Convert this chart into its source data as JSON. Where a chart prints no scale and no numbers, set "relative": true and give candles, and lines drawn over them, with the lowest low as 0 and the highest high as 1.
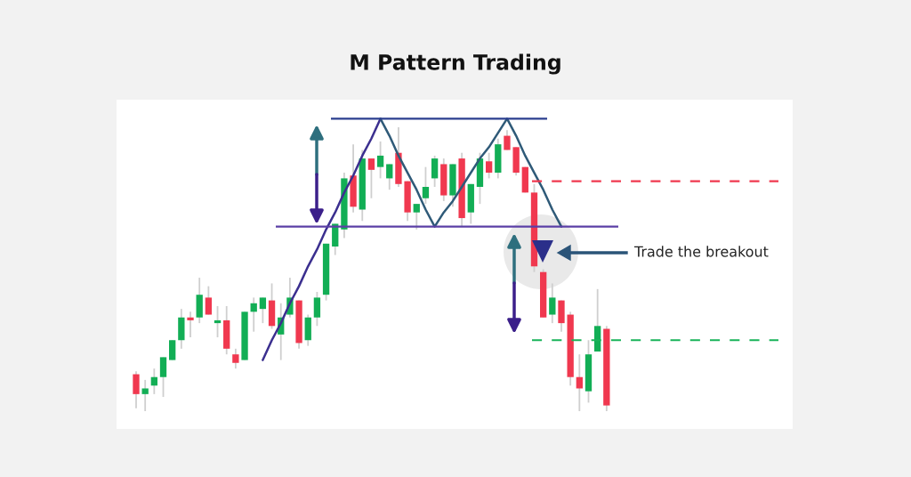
{
  "chart_data": {
    "type": "candlestick",
    "title": "M Pattern Trading",
    "relative": true,
    "categories": [
      null,
      null,
      null,
      null,
      null,
      null,
      null,
      null,
      null,
      null,
      null,
      null,
      null,
      null,
      null,
      null,
      null,
      null,
      null,
      null,
      null,
      null,
      null,
      null,
      null,
      null,
      null,
      null,
      null,
      null,
      null,
      null,
      null,
      null,
      null,
      null,
      null,
      null,
      null,
      null,
      null,
      null,
      null,
      null,
      null,
      null,
      null,
      null,
      null,
      null,
      null,
      null,
      null
    ],
    "ohlc": [
      [
        0.13,
        0.14,
        0.01,
        0.06
      ],
      [
        0.06,
        0.11,
        0.0,
        0.08
      ],
      [
        0.09,
        0.15,
        0.06,
        0.12
      ],
      [
        0.12,
        0.19,
        0.05,
        0.19
      ],
      [
        0.18,
        0.25,
        0.18,
        0.25
      ],
      [
        0.25,
        0.36,
        0.22,
        0.33
      ],
      [
        0.33,
        0.35,
        0.26,
        0.32
      ],
      [
        0.33,
        0.47,
        0.31,
        0.41
      ],
      [
        0.4,
        0.44,
        0.34,
        0.34
      ],
      [
        0.31,
        0.37,
        0.26,
        0.32
      ],
      [
        0.32,
        0.37,
        0.2,
        0.22
      ],
      [
        0.2,
        0.22,
        0.15,
        0.17
      ],
      [
        0.18,
        0.35,
        0.18,
        0.35
      ],
      [
        0.35,
        0.4,
        0.28,
        0.38
      ],
      [
        0.36,
        0.4,
        0.31,
        0.4
      ],
      [
        0.39,
        0.45,
        0.29,
        0.3
      ],
      [
        0.27,
        0.38,
        0.18,
        0.33
      ],
      [
        0.34,
        0.47,
        0.33,
        0.4
      ],
      [
        0.39,
        0.39,
        0.22,
        0.24
      ],
      [
        0.25,
        0.34,
        0.23,
        0.33
      ],
      [
        0.33,
        0.42,
        0.3,
        0.4
      ],
      [
        0.41,
        0.59,
        0.39,
        0.59
      ],
      [
        0.58,
        0.66,
        0.55,
        0.66
      ],
      [
        0.64,
        0.84,
        0.61,
        0.82
      ],
      [
        0.83,
        0.94,
        0.7,
        0.72
      ],
      [
        0.71,
        0.92,
        0.67,
        0.89
      ],
      [
        0.89,
        0.89,
        0.75,
        0.85
      ],
      [
        0.86,
        0.95,
        0.82,
        0.9
      ],
      [
        0.82,
        0.87,
        0.78,
        0.87
      ],
      [
        0.91,
        1.0,
        0.79,
        0.8
      ],
      [
        0.81,
        0.81,
        0.67,
        0.7
      ],
      [
        0.7,
        0.73,
        0.64,
        0.73
      ],
      [
        0.75,
        0.86,
        0.73,
        0.79
      ],
      [
        0.82,
        0.9,
        0.79,
        0.89
      ],
      [
        0.87,
        0.89,
        0.74,
        0.76
      ],
      [
        0.76,
        0.87,
        0.72,
        0.87
      ],
      [
        0.89,
        0.91,
        0.65,
        0.68
      ],
      [
        0.7,
        0.8,
        0.66,
        0.8
      ],
      [
        0.79,
        0.91,
        0.73,
        0.89
      ],
      [
        0.88,
        0.91,
        0.82,
        0.84
      ],
      [
        0.84,
        0.96,
        0.82,
        0.94
      ],
      [
        0.97,
        0.99,
        0.92,
        0.92
      ],
      [
        0.93,
        0.93,
        0.83,
        0.84
      ],
      [
        0.86,
        0.86,
        0.77,
        0.77
      ],
      [
        0.77,
        0.8,
        0.49,
        0.51
      ],
      [
        0.49,
        0.5,
        0.33,
        0.33
      ],
      [
        0.34,
        0.45,
        0.31,
        0.4
      ],
      [
        0.39,
        0.39,
        0.28,
        0.31
      ],
      [
        0.34,
        0.35,
        0.09,
        0.12
      ],
      [
        0.12,
        0.2,
        0.0,
        0.08
      ],
      [
        0.07,
        0.25,
        0.03,
        0.2
      ],
      [
        0.21,
        0.43,
        0.21,
        0.3
      ],
      [
        0.29,
        0.3,
        0.0,
        0.02
      ]
    ],
    "colors": [
      "#f0384f",
      "#12ae55",
      "#12ae55",
      "#12ae55",
      "#12ae55",
      "#12ae55",
      "#f0384f",
      "#12ae55",
      "#f0384f",
      "#12ae55",
      "#f0384f",
      "#f0384f",
      "#12ae55",
      "#12ae55",
      "#12ae55",
      "#f0384f",
      "#12ae55",
      "#12ae55",
      "#f0384f",
      "#12ae55",
      "#12ae55",
      "#12ae55",
      "#12ae55",
      "#12ae55",
      "#f0384f",
      "#12ae55",
      "#f0384f",
      "#12ae55",
      "#12ae55",
      "#f0384f",
      "#f0384f",
      "#12ae55",
      "#12ae55",
      "#12ae55",
      "#f0384f",
      "#12ae55",
      "#f0384f",
      "#12ae55",
      "#12ae55",
      "#f0384f",
      "#12ae55",
      "#f0384f",
      "#f0384f",
      "#f0384f",
      "#f0384f",
      "#f0384f",
      "#12ae55",
      "#f0384f",
      "#f0384f",
      "#f0384f",
      "#12ae55",
      "#12ae55",
      "#f0384f"
    ],
    "ref_lines": [
      {
        "axis": "y",
        "value": 0.65,
        "color": "#5b3fa6"
      },
      {
        "axis": "y",
        "value": 0.81,
        "color": "#f0384f",
        "line_style": "dashed"
      },
      {
        "axis": "y",
        "value": 0.25,
        "color": "#19b35a",
        "line_style": "dashed"
      },
      {
        "axis": "y",
        "value": 1.03,
        "color": "#2b3f8f"
      }
    ],
    "series": [
      {
        "type": "line",
        "color": "#3b2f8f",
        "values": [
          null,
          null,
          null,
          null,
          null,
          null,
          null,
          null,
          null,
          null,
          null,
          null,
          null,
          null,
          0.18,
          0.25,
          0.31,
          0.38,
          0.44,
          0.51,
          0.57,
          0.64,
          0.7,
          0.77,
          0.83,
          0.9,
          0.96,
          1.03,
          null,
          null,
          null,
          null,
          null,
          null,
          null,
          null,
          null,
          null,
          null,
          null,
          null,
          null,
          null,
          null,
          null,
          null,
          null,
          null,
          null,
          null,
          null,
          null,
          null
        ]
      },
      {
        "type": "line",
        "color": "#2f5a78",
        "values": [
          null,
          null,
          null,
          null,
          null,
          null,
          null,
          null,
          null,
          null,
          null,
          null,
          null,
          null,
          null,
          null,
          null,
          null,
          null,
          null,
          null,
          null,
          null,
          null,
          null,
          null,
          null,
          1.03,
          0.97,
          0.9,
          0.84,
          0.78,
          0.71,
          0.65,
          0.7,
          0.74,
          0.79,
          0.84,
          0.89,
          0.93,
          0.98,
          1.03,
          0.97,
          0.9,
          0.84,
          0.78,
          0.71,
          0.65,
          null,
          null,
          null,
          null,
          null
        ]
      }
    ],
    "annotations": [
      "Trade the breakout"
    ],
    "grid": false,
    "legend": false
  }
}
